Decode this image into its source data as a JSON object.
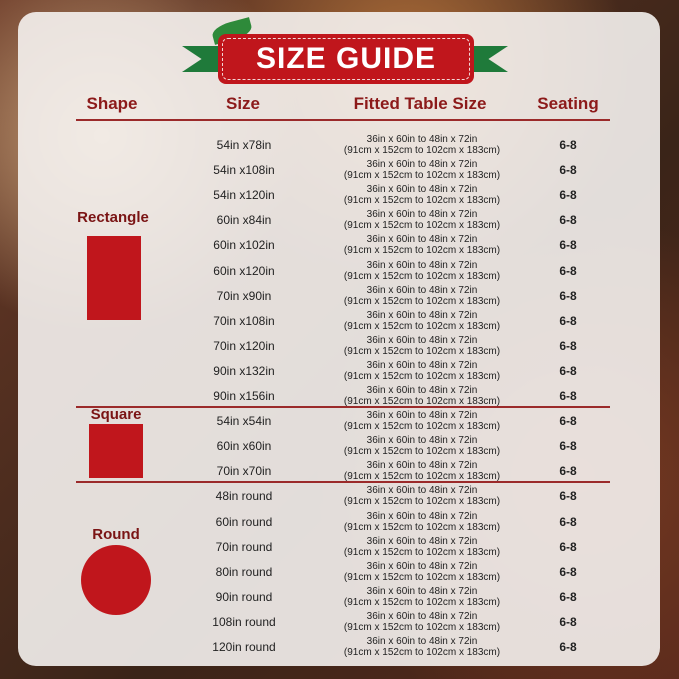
{
  "title": "SIZE GUIDE",
  "headers": {
    "shape": "Shape",
    "size": "Size",
    "fitted": "Fitted Table Size",
    "seating": "Seating"
  },
  "colors": {
    "accent": "#c0161c",
    "header_text": "#8c1a1a",
    "ribbon": "#1f7a3a"
  },
  "groups": [
    {
      "shape": "Rectangle",
      "icon": "rectangle-shape",
      "rows": [
        {
          "size": "54in x78in",
          "fitted_in": "36in x 60in to 48in x 72in",
          "fitted_cm": "(91cm x 152cm to 102cm x 183cm)",
          "seating": "6-8"
        },
        {
          "size": "54in x108in",
          "fitted_in": "36in x 60in to 48in x 72in",
          "fitted_cm": "(91cm x 152cm to 102cm x 183cm)",
          "seating": "6-8"
        },
        {
          "size": "54in x120in",
          "fitted_in": "36in x 60in to 48in x 72in",
          "fitted_cm": "(91cm x 152cm to 102cm x 183cm)",
          "seating": "6-8"
        },
        {
          "size": "60in x84in",
          "fitted_in": "36in x 60in to 48in x 72in",
          "fitted_cm": "(91cm x 152cm to 102cm x 183cm)",
          "seating": "6-8"
        },
        {
          "size": "60in x102in",
          "fitted_in": "36in x 60in to 48in x 72in",
          "fitted_cm": "(91cm x 152cm to 102cm x 183cm)",
          "seating": "6-8"
        },
        {
          "size": "60in x120in",
          "fitted_in": "36in x 60in to 48in x 72in",
          "fitted_cm": "(91cm x 152cm to 102cm x 183cm)",
          "seating": "6-8"
        },
        {
          "size": "70in x90in",
          "fitted_in": "36in x 60in to 48in x 72in",
          "fitted_cm": "(91cm x 152cm to 102cm x 183cm)",
          "seating": "6-8"
        },
        {
          "size": "70in x108in",
          "fitted_in": "36in x 60in to 48in x 72in",
          "fitted_cm": "(91cm x 152cm to 102cm x 183cm)",
          "seating": "6-8"
        },
        {
          "size": "70in x120in",
          "fitted_in": "36in x 60in to 48in x 72in",
          "fitted_cm": "(91cm x 152cm to 102cm x 183cm)",
          "seating": "6-8"
        },
        {
          "size": "90in x132in",
          "fitted_in": "36in x 60in to 48in x 72in",
          "fitted_cm": "(91cm x 152cm to 102cm x 183cm)",
          "seating": "6-8"
        },
        {
          "size": "90in x156in",
          "fitted_in": "36in x 60in to 48in x 72in",
          "fitted_cm": "(91cm x 152cm to 102cm x 183cm)",
          "seating": "6-8"
        }
      ]
    },
    {
      "shape": "Square",
      "icon": "square-shape",
      "rows": [
        {
          "size": "54in x54in",
          "fitted_in": "36in x 60in to 48in x 72in",
          "fitted_cm": "(91cm x 152cm to 102cm x 183cm)",
          "seating": "6-8"
        },
        {
          "size": "60in x60in",
          "fitted_in": "36in x 60in to 48in x 72in",
          "fitted_cm": "(91cm x 152cm to 102cm x 183cm)",
          "seating": "6-8"
        },
        {
          "size": "70in x70in",
          "fitted_in": "36in x 60in to 48in x 72in",
          "fitted_cm": "(91cm x 152cm to 102cm x 183cm)",
          "seating": "6-8"
        }
      ]
    },
    {
      "shape": "Round",
      "icon": "circle-shape",
      "rows": [
        {
          "size": "48in round",
          "fitted_in": "36in x 60in to 48in x 72in",
          "fitted_cm": "(91cm x 152cm to 102cm x 183cm)",
          "seating": "6-8"
        },
        {
          "size": "60in round",
          "fitted_in": "36in x 60in to 48in x 72in",
          "fitted_cm": "(91cm x 152cm to 102cm x 183cm)",
          "seating": "6-8"
        },
        {
          "size": "70in round",
          "fitted_in": "36in x 60in to 48in x 72in",
          "fitted_cm": "(91cm x 152cm to 102cm x 183cm)",
          "seating": "6-8"
        },
        {
          "size": "80in round",
          "fitted_in": "36in x 60in to 48in x 72in",
          "fitted_cm": "(91cm x 152cm to 102cm x 183cm)",
          "seating": "6-8"
        },
        {
          "size": "90in round",
          "fitted_in": "36in x 60in to 48in x 72in",
          "fitted_cm": "(91cm x 152cm to 102cm x 183cm)",
          "seating": "6-8"
        },
        {
          "size": "108in round",
          "fitted_in": "36in x 60in to 48in x 72in",
          "fitted_cm": "(91cm x 152cm to 102cm x 183cm)",
          "seating": "6-8"
        },
        {
          "size": "120in round",
          "fitted_in": "36in x 60in to 48in x 72in",
          "fitted_cm": "(91cm x 152cm to 102cm x 183cm)",
          "seating": "6-8"
        }
      ]
    }
  ]
}
